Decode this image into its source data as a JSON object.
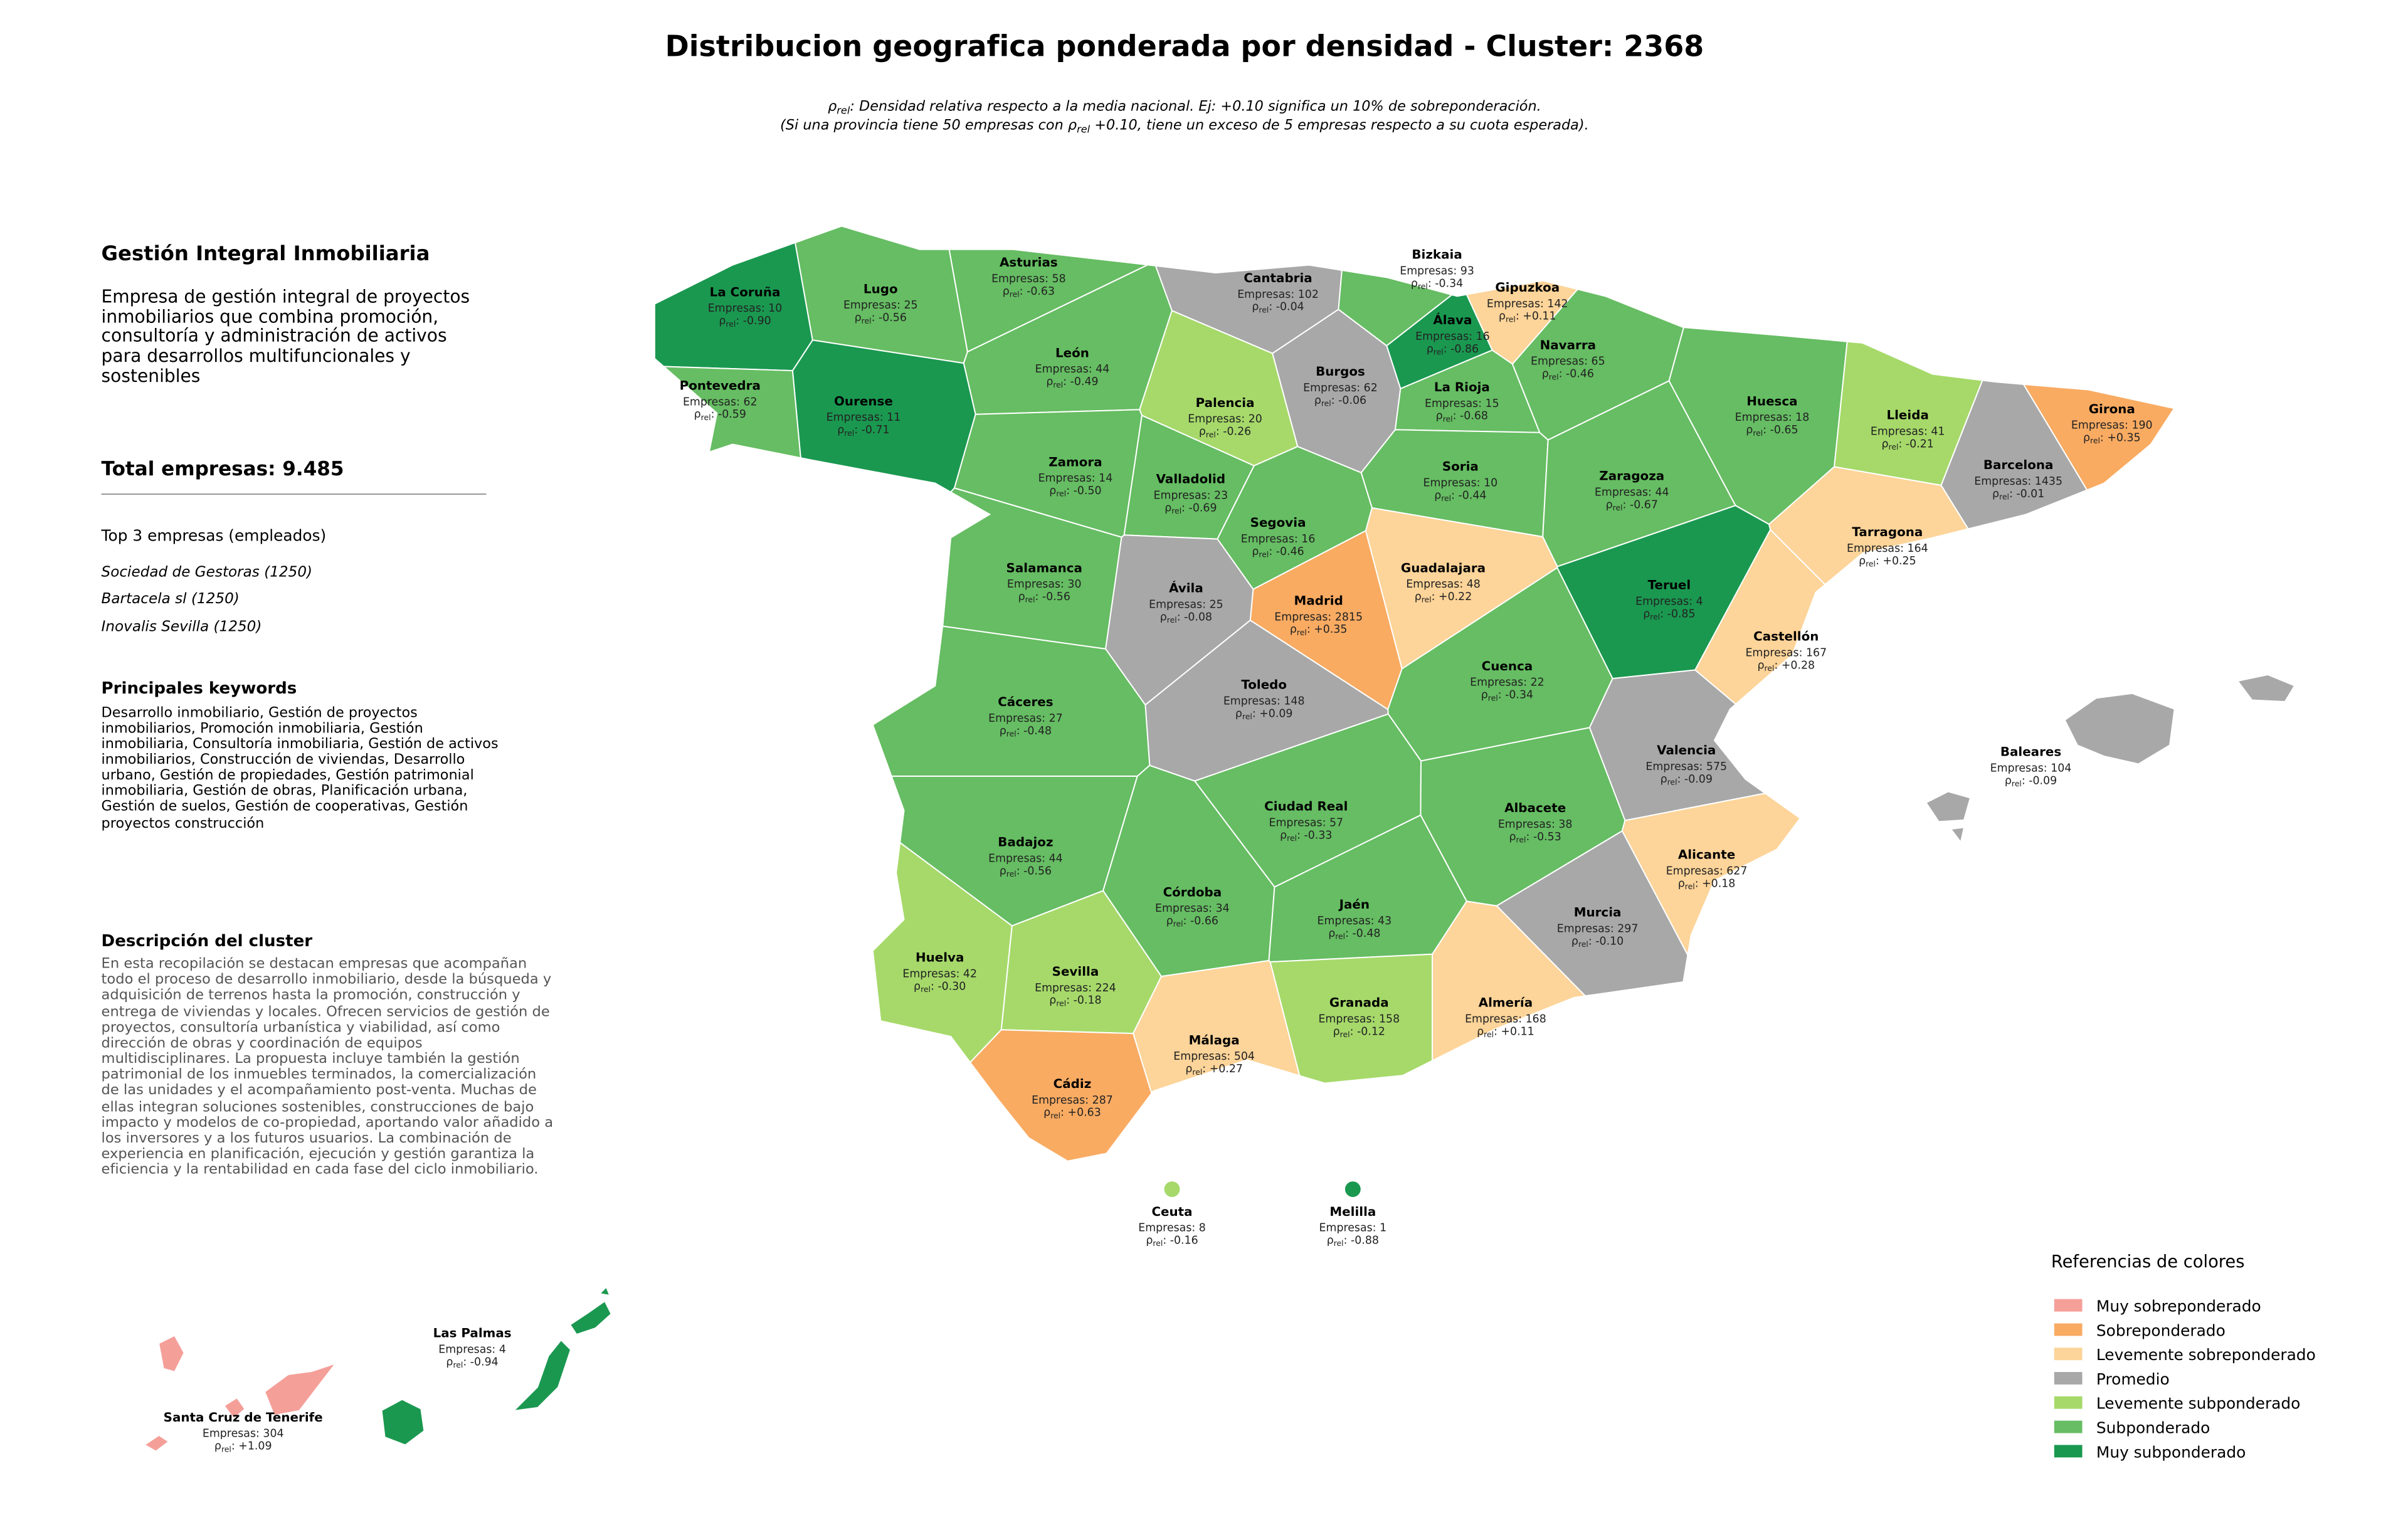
{
  "header": {
    "title": "Distribucion geografica ponderada por densidad - Cluster: 2368",
    "note_line1": {
      "symbol": "ρ",
      "subscript": "rel",
      "text": ": Densidad relativa respecto a la media nacional. Ej: +0.10 significa un 10% de sobreponderación."
    },
    "note_line2": {
      "before": "(Si una provincia tiene 50 empresas con ",
      "symbol": "ρ",
      "subscript": "rel",
      "after": " +0.10, tiene un exceso de 5 empresas respecto a su cuota esperada)."
    }
  },
  "sidebar": {
    "company": "Gestión Integral Inmobiliaria",
    "company_description": "Empresa de gestión integral de proyectos inmobiliarios que combina promoción, consultoría y administración de activos para desarrollos multifuncionales y sostenibles",
    "total": "Total empresas: 9.485",
    "top_title": "Top 3 empresas (empleados)",
    "top_companies": [
      "Sociedad de Gestoras (1250)",
      "Bartacela sl (1250)",
      "Inovalis Sevilla (1250)"
    ],
    "keywords_title": "Principales keywords",
    "keywords": "Desarrollo inmobiliario, Gestión de proyectos inmobiliarios, Promoción inmobiliaria, Gestión inmobiliaria, Consultoría inmobiliaria, Gestión de activos inmobiliarios, Construcción de viviendas, Desarrollo urbano, Gestión de propiedades, Gestión patrimonial inmobiliaria, Gestión de obras, Planificación urbana, Gestión de suelos, Gestión de cooperativas, Gestión proyectos construcción",
    "cluster_title": "Descripción del cluster",
    "cluster_description": "En esta recopilación se destacan empresas que acompañan todo el proceso de desarrollo inmobiliario, desde la búsqueda y adquisición de terrenos hasta la promoción, construcción y entrega de viviendas y locales. Ofrecen servicios de gestión de proyectos, consultoría urbanística y viabilidad, así como dirección de obras y coordinación de equipos multidisciplinares. La propuesta incluye también la gestión patrimonial de los inmuebles terminados, la comercialización de las unidades y el acompañamiento post-venta. Muchas de ellas integran soluciones sostenibles, construcciones de bajo impacto y modelos de co-propiedad, aportando valor añadido a los inversores y a los futuros usuarios. La combinación de experiencia en planificación, ejecución y gestión garantiza la eficiencia y la rentabilidad en cada fase del ciclo inmobiliario."
  },
  "map": {
    "companies_label": "Empresas:",
    "rho_symbol": "ρ",
    "rho_subscript": "rel",
    "rho_separator": ":",
    "provinces": [
      {
        "name": "La Coruña",
        "companies": 10,
        "rho": -0.9,
        "rho_label": "-0.90",
        "category": 6
      },
      {
        "name": "Lugo",
        "companies": 25,
        "rho": -0.56,
        "rho_label": "-0.56",
        "category": 5
      },
      {
        "name": "Asturias",
        "companies": 58,
        "rho": -0.63,
        "rho_label": "-0.63",
        "category": 5
      },
      {
        "name": "Cantabria",
        "companies": 102,
        "rho": -0.04,
        "rho_label": "-0.04",
        "category": 3
      },
      {
        "name": "Bizkaia",
        "companies": 93,
        "rho": -0.34,
        "rho_label": "-0.34",
        "category": 5
      },
      {
        "name": "Gipuzkoa",
        "companies": 142,
        "rho": 0.11,
        "rho_label": "+0.11",
        "category": 2
      },
      {
        "name": "Álava",
        "companies": 16,
        "rho": -0.86,
        "rho_label": "-0.86",
        "category": 6
      },
      {
        "name": "Pontevedra",
        "companies": 62,
        "rho": -0.59,
        "rho_label": "-0.59",
        "category": 5
      },
      {
        "name": "Ourense",
        "companies": 11,
        "rho": -0.71,
        "rho_label": "-0.71",
        "category": 6
      },
      {
        "name": "León",
        "companies": 44,
        "rho": -0.49,
        "rho_label": "-0.49",
        "category": 5
      },
      {
        "name": "Palencia",
        "companies": 20,
        "rho": -0.26,
        "rho_label": "-0.26",
        "category": 4
      },
      {
        "name": "Burgos",
        "companies": 62,
        "rho": -0.06,
        "rho_label": "-0.06",
        "category": 3
      },
      {
        "name": "La Rioja",
        "companies": 15,
        "rho": -0.68,
        "rho_label": "-0.68",
        "category": 5
      },
      {
        "name": "Navarra",
        "companies": 65,
        "rho": -0.46,
        "rho_label": "-0.46",
        "category": 5
      },
      {
        "name": "Huesca",
        "companies": 18,
        "rho": -0.65,
        "rho_label": "-0.65",
        "category": 5
      },
      {
        "name": "Lleida",
        "companies": 41,
        "rho": -0.21,
        "rho_label": "-0.21",
        "category": 4
      },
      {
        "name": "Girona",
        "companies": 190,
        "rho": 0.35,
        "rho_label": "+0.35",
        "category": 1
      },
      {
        "name": "Barcelona",
        "companies": 1435,
        "rho": -0.01,
        "rho_label": "-0.01",
        "category": 3
      },
      {
        "name": "Zamora",
        "companies": 14,
        "rho": -0.5,
        "rho_label": "-0.50",
        "category": 5
      },
      {
        "name": "Valladolid",
        "companies": 23,
        "rho": -0.69,
        "rho_label": "-0.69",
        "category": 5
      },
      {
        "name": "Soria",
        "companies": 10,
        "rho": -0.44,
        "rho_label": "-0.44",
        "category": 5
      },
      {
        "name": "Zaragoza",
        "companies": 44,
        "rho": -0.67,
        "rho_label": "-0.67",
        "category": 5
      },
      {
        "name": "Tarragona",
        "companies": 164,
        "rho": 0.25,
        "rho_label": "+0.25",
        "category": 2
      },
      {
        "name": "Segovia",
        "companies": 16,
        "rho": -0.46,
        "rho_label": "-0.46",
        "category": 5
      },
      {
        "name": "Salamanca",
        "companies": 30,
        "rho": -0.56,
        "rho_label": "-0.56",
        "category": 5
      },
      {
        "name": "Ávila",
        "companies": 25,
        "rho": -0.08,
        "rho_label": "-0.08",
        "category": 3
      },
      {
        "name": "Madrid",
        "companies": 2815,
        "rho": 0.35,
        "rho_label": "+0.35",
        "category": 1
      },
      {
        "name": "Guadalajara",
        "companies": 48,
        "rho": 0.22,
        "rho_label": "+0.22",
        "category": 2
      },
      {
        "name": "Teruel",
        "companies": 4,
        "rho": -0.85,
        "rho_label": "-0.85",
        "category": 6
      },
      {
        "name": "Castellón",
        "companies": 167,
        "rho": 0.28,
        "rho_label": "+0.28",
        "category": 2
      },
      {
        "name": "Toledo",
        "companies": 148,
        "rho": 0.09,
        "rho_label": "+0.09",
        "category": 3
      },
      {
        "name": "Cuenca",
        "companies": 22,
        "rho": -0.34,
        "rho_label": "-0.34",
        "category": 5
      },
      {
        "name": "Cáceres",
        "companies": 27,
        "rho": -0.48,
        "rho_label": "-0.48",
        "category": 5
      },
      {
        "name": "Valencia",
        "companies": 575,
        "rho": -0.09,
        "rho_label": "-0.09",
        "category": 3
      },
      {
        "name": "Baleares",
        "companies": 104,
        "rho": -0.09,
        "rho_label": "-0.09",
        "category": 3
      },
      {
        "name": "Ciudad Real",
        "companies": 57,
        "rho": -0.33,
        "rho_label": "-0.33",
        "category": 5
      },
      {
        "name": "Albacete",
        "companies": 38,
        "rho": -0.53,
        "rho_label": "-0.53",
        "category": 5
      },
      {
        "name": "Badajoz",
        "companies": 44,
        "rho": -0.56,
        "rho_label": "-0.56",
        "category": 5
      },
      {
        "name": "Alicante",
        "companies": 627,
        "rho": 0.18,
        "rho_label": "+0.18",
        "category": 2
      },
      {
        "name": "Córdoba",
        "companies": 34,
        "rho": -0.66,
        "rho_label": "-0.66",
        "category": 5
      },
      {
        "name": "Jaén",
        "companies": 43,
        "rho": -0.48,
        "rho_label": "-0.48",
        "category": 5
      },
      {
        "name": "Murcia",
        "companies": 297,
        "rho": -0.1,
        "rho_label": "-0.10",
        "category": 3
      },
      {
        "name": "Huelva",
        "companies": 42,
        "rho": -0.3,
        "rho_label": "-0.30",
        "category": 4
      },
      {
        "name": "Sevilla",
        "companies": 224,
        "rho": -0.18,
        "rho_label": "-0.18",
        "category": 4
      },
      {
        "name": "Granada",
        "companies": 158,
        "rho": -0.12,
        "rho_label": "-0.12",
        "category": 4
      },
      {
        "name": "Almería",
        "companies": 168,
        "rho": 0.11,
        "rho_label": "+0.11",
        "category": 2
      },
      {
        "name": "Málaga",
        "companies": 504,
        "rho": 0.27,
        "rho_label": "+0.27",
        "category": 2
      },
      {
        "name": "Cádiz",
        "companies": 287,
        "rho": 0.63,
        "rho_label": "+0.63",
        "category": 1
      },
      {
        "name": "Ceuta",
        "companies": 8,
        "rho": -0.16,
        "rho_label": "-0.16",
        "category": 4
      },
      {
        "name": "Melilla",
        "companies": 1,
        "rho": -0.88,
        "rho_label": "-0.88",
        "category": 6
      },
      {
        "name": "Las Palmas",
        "companies": 4,
        "rho": -0.94,
        "rho_label": "-0.94",
        "category": 6
      },
      {
        "name": "Santa Cruz de Tenerife",
        "companies": 304,
        "rho": 1.09,
        "rho_label": "+1.09",
        "category": 0
      }
    ]
  },
  "legend": {
    "title": "Referencias de colores",
    "categories": [
      {
        "name": "Muy sobreponderado",
        "color": "#f59f99"
      },
      {
        "name": "Sobreponderado",
        "color": "#f9ab62"
      },
      {
        "name": "Levemente sobreponderado",
        "color": "#fdd499"
      },
      {
        "name": "Promedio",
        "color": "#a8a8a8"
      },
      {
        "name": "Levemente subponderado",
        "color": "#a6d96a"
      },
      {
        "name": "Subponderado",
        "color": "#66bd63"
      },
      {
        "name": "Muy subponderado",
        "color": "#1a9850"
      }
    ]
  }
}
